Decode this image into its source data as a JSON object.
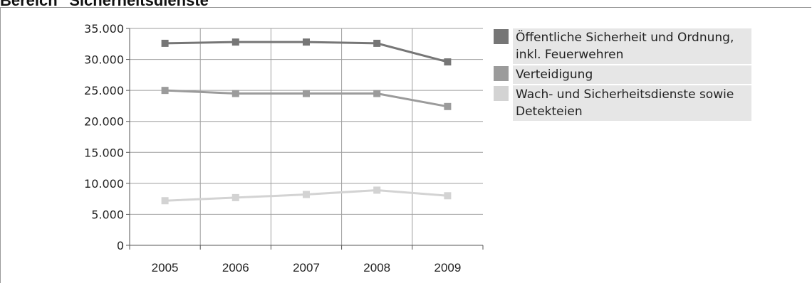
{
  "header": {
    "title": "Bereich \"Sicherheitsdienste\""
  },
  "chart_data": {
    "type": "line",
    "title": "",
    "xlabel": "",
    "ylabel": "",
    "categories": [
      "2005",
      "2006",
      "2007",
      "2008",
      "2009"
    ],
    "ylim": [
      0,
      35000
    ],
    "yticks": [
      0,
      5000,
      10000,
      15000,
      20000,
      25000,
      30000,
      35000
    ],
    "ytick_labels": [
      "0",
      "5.000",
      "10.000",
      "15.000",
      "20.000",
      "25.000",
      "30.000",
      "35.000"
    ],
    "grid": true,
    "legend_position": "right",
    "series": [
      {
        "name": "Öffentliche Sicherheit und Ordnung, inkl. Feuerwehren",
        "color": "#767676",
        "values": [
          32600,
          32800,
          32800,
          32600,
          29600
        ]
      },
      {
        "name": "Verteidigung",
        "color": "#9b9b9b",
        "values": [
          25000,
          24500,
          24500,
          24500,
          22400
        ]
      },
      {
        "name": "Wach- und Sicherheitsdienste sowie Detekteien",
        "color": "#d3d3d3",
        "values": [
          7200,
          7700,
          8200,
          8900,
          8000
        ]
      }
    ]
  }
}
